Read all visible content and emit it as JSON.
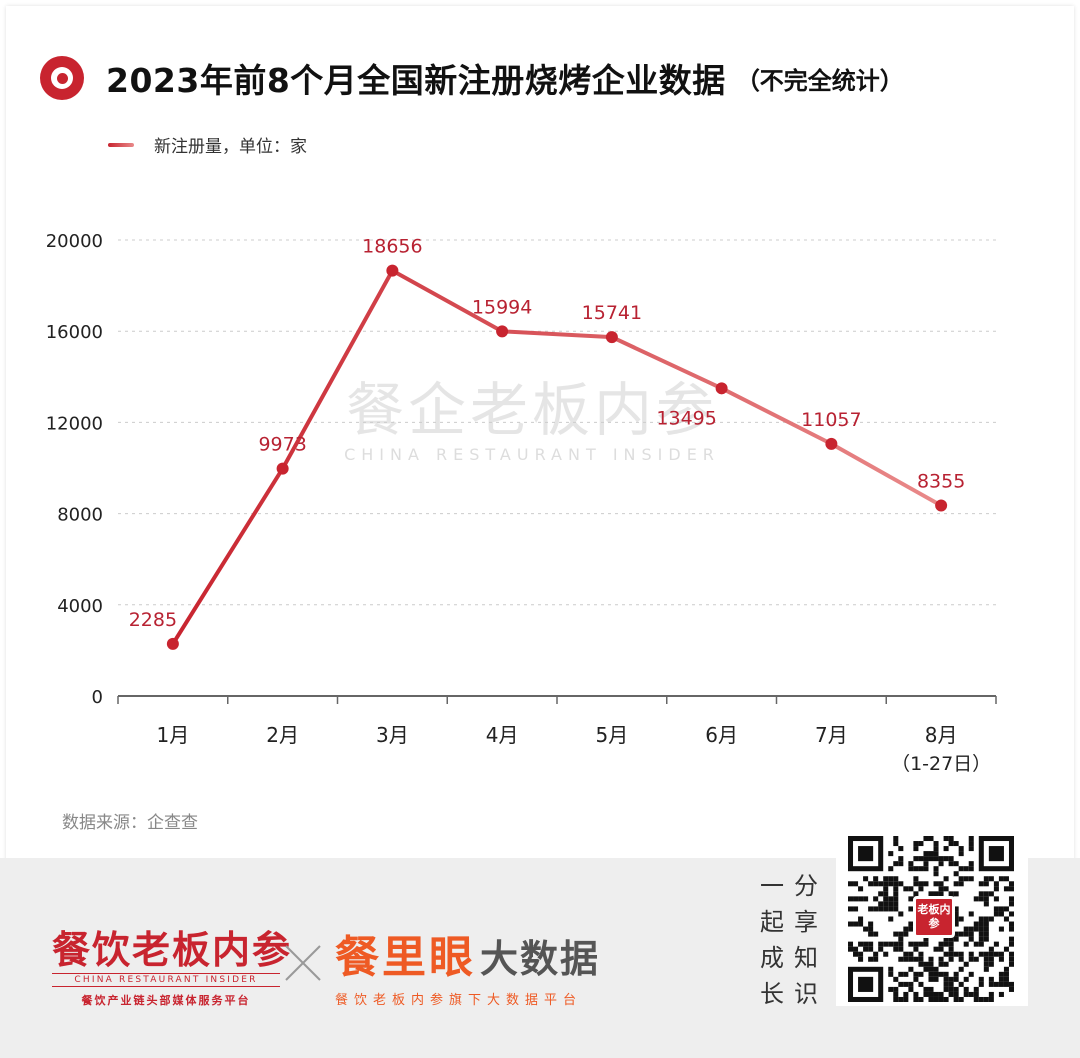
{
  "title": "2023年前8个月全国新注册烧烤企业数据",
  "title_note": "（不完全统计）",
  "legend_label": "新注册量，单位：家",
  "source": "数据来源：企查查",
  "watermark": {
    "cn": "餐企老板内参",
    "en": "CHINA RESTAURANT INSIDER"
  },
  "colors": {
    "accent": "#c8242f",
    "line_end": "#e98a8a",
    "label": "#b82232",
    "orange": "#ee5a24"
  },
  "chart_data": {
    "type": "line",
    "categories": [
      "1月",
      "2月",
      "3月",
      "4月",
      "5月",
      "6月",
      "7月",
      "8月"
    ],
    "category_sublabels": [
      "",
      "",
      "",
      "",
      "",
      "",
      "",
      "（1-27日）"
    ],
    "series": [
      {
        "name": "新注册量，单位：家",
        "values": [
          2285,
          9973,
          18656,
          15994,
          15741,
          13495,
          11057,
          8355
        ]
      }
    ],
    "yticks": [
      0,
      4000,
      8000,
      12000,
      16000,
      20000
    ],
    "ylim": [
      0,
      20000
    ],
    "grid": true,
    "legend_position": "top-left"
  },
  "footer": {
    "brand1_name": "餐饮老板内参",
    "brand1_en": "CHINA RESTAURANT INSIDER",
    "brand1_tag": "餐饮产业链头部媒体服务平台",
    "brand2_orange": "餐里眼",
    "brand2_gray": "大数据",
    "brand2_tag": "餐饮老板内参旗下大数据平台",
    "slogan": [
      "一",
      "分",
      "起",
      "享",
      "成",
      "知",
      "长",
      "识"
    ],
    "qr_badge": "老板内参"
  }
}
